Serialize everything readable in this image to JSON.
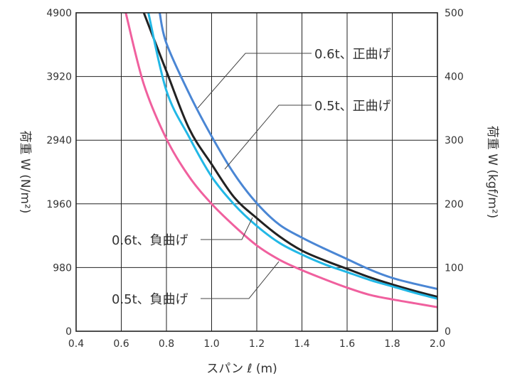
{
  "chart_data": {
    "type": "line",
    "xlabel": "スパン ℓ (m)",
    "ylabel_left": "荷重 W (N/m²)",
    "ylabel_right": "荷重 W (kgf/m²)",
    "xlim": [
      0.4,
      2.0
    ],
    "ylim_left": [
      0,
      4900
    ],
    "ylim_right": [
      0,
      500
    ],
    "x_ticks": [
      "0.4",
      "0.6",
      "0.8",
      "1.0",
      "1.2",
      "1.4",
      "1.6",
      "1.8",
      "2.0"
    ],
    "y_ticks_left": [
      "0",
      "980",
      "1960",
      "2940",
      "3920",
      "4900"
    ],
    "y_ticks_right": [
      "0",
      "100",
      "200",
      "300",
      "400",
      "500"
    ],
    "grid": true,
    "series": [
      {
        "name": "0.6t、正曲げ",
        "color": "#4a86d4",
        "x": [
          0.77,
          0.8,
          0.9,
          1.0,
          1.1,
          1.2,
          1.3,
          1.4,
          1.5,
          1.6,
          1.7,
          1.8,
          1.9,
          2.0
        ],
        "y": [
          4900,
          4430,
          3660,
          3000,
          2420,
          1970,
          1640,
          1440,
          1270,
          1110,
          950,
          820,
          730,
          650
        ]
      },
      {
        "name": "0.6t、負曲げ",
        "color": "#222222",
        "x": [
          0.7,
          0.8,
          0.9,
          1.0,
          1.1,
          1.2,
          1.3,
          1.4,
          1.5,
          1.6,
          1.7,
          1.8,
          1.9,
          2.0
        ],
        "y": [
          4900,
          4000,
          3120,
          2570,
          2060,
          1740,
          1460,
          1240,
          1090,
          960,
          830,
          720,
          620,
          530
        ]
      },
      {
        "name": "0.5t、正曲げ",
        "color": "#22b8e6",
        "x": [
          0.72,
          0.8,
          0.9,
          1.0,
          1.1,
          1.2,
          1.3,
          1.4,
          1.5,
          1.6,
          1.7,
          1.8,
          1.9,
          2.0
        ],
        "y": [
          4900,
          3700,
          2990,
          2380,
          1950,
          1620,
          1360,
          1180,
          1030,
          910,
          790,
          690,
          590,
          500
        ]
      },
      {
        "name": "0.5t、負曲げ",
        "color": "#f0609e",
        "x": [
          0.62,
          0.7,
          0.8,
          0.9,
          1.0,
          1.1,
          1.2,
          1.3,
          1.4,
          1.5,
          1.6,
          1.7,
          1.8,
          1.9,
          2.0
        ],
        "y": [
          4900,
          3800,
          2960,
          2380,
          1960,
          1620,
          1320,
          1100,
          940,
          800,
          670,
          560,
          490,
          430,
          370
        ]
      }
    ],
    "annotations": [
      "0.6t、正曲げ",
      "0.5t、正曲げ",
      "0.6t、負曲げ",
      "0.5t、負曲げ"
    ]
  }
}
